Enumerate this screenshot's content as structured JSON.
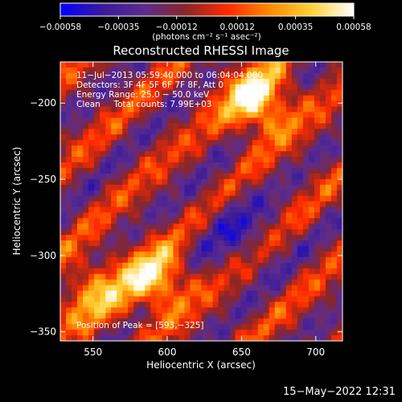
{
  "chart_data": {
    "type": "heatmap",
    "title": "Reconstructed RHESSI Image",
    "xlabel": "Heliocentric X (arcsec)",
    "ylabel": "Heliocentric Y (arcsec)",
    "xlim": [
      528,
      718
    ],
    "ylim": [
      -356,
      -173
    ],
    "x_ticks": [
      550,
      600,
      650,
      700
    ],
    "y_ticks": [
      -200,
      -250,
      -300,
      -350
    ],
    "x_tick_labels": [
      "550",
      "600",
      "650",
      "700"
    ],
    "y_tick_labels": [
      "−200",
      "−250",
      "−300",
      "−350"
    ],
    "colorbar": {
      "min": -0.00058,
      "max": 0.00058,
      "ticks": [
        -0.00058,
        -0.00035,
        -0.00012,
        0.00012,
        0.00035,
        0.00058
      ],
      "tick_labels": [
        "−0.00058",
        "−0.00035",
        "−0.00012",
        "0.00012",
        "0.00035",
        "0.00058"
      ],
      "unit_label": "(photons cm⁻² s⁻¹ asec⁻²)"
    },
    "annotations": [
      "11−Jul−2013 05:59:40.000 to 06:04:04.000",
      "Detectors: 3F 4F 5F 6F 7F 8F, Att 0",
      "Energy Range: 25.0 − 50.0 keV",
      "Clean     Total counts: 7.99E+03"
    ],
    "peak_label": "Position of Peak = [593,−325]",
    "peak": [
      593,
      -325
    ],
    "colormap_stops": [
      "#0000ff",
      "#3a1a9a",
      "#5c2c8e",
      "#8a2626",
      "#ff2a00",
      "#ff8a00",
      "#ffd23a",
      "#ffffff"
    ]
  },
  "footer": {
    "timestamp": "15−May−2022 12:31"
  }
}
